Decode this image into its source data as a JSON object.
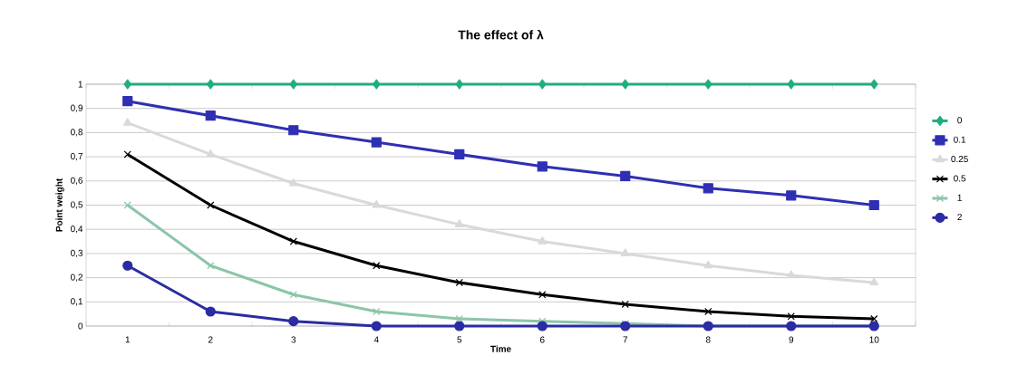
{
  "chart_data": {
    "type": "line",
    "title": "The effect of λ",
    "xlabel": "Time",
    "ylabel": "Point weight",
    "categories": [
      "1",
      "2",
      "3",
      "4",
      "5",
      "6",
      "7",
      "8",
      "9",
      "10"
    ],
    "ylim": [
      0,
      1
    ],
    "yticks": [
      0,
      {
        "value": 0.1,
        "label": "0,1"
      },
      {
        "value": 0.2,
        "label": "0,2"
      },
      {
        "value": 0.3,
        "label": "0,3"
      },
      {
        "value": 0.4,
        "label": "0,4"
      },
      {
        "value": 0.5,
        "label": "0,5"
      },
      {
        "value": 0.6,
        "label": "0,6"
      },
      {
        "value": 0.7,
        "label": "0,7"
      },
      {
        "value": 0.8,
        "label": "0,8"
      },
      {
        "value": 0.9,
        "label": "0,9"
      },
      1
    ],
    "grid": "y",
    "legend": "right",
    "series": [
      {
        "name": "0",
        "color": "#1fae80",
        "marker": "diamond",
        "values": [
          1,
          1,
          1,
          1,
          1,
          1,
          1,
          1,
          1,
          1
        ]
      },
      {
        "name": "0.1",
        "color": "#2f2fb4",
        "marker": "square",
        "values": [
          0.93,
          0.87,
          0.81,
          0.76,
          0.71,
          0.66,
          0.62,
          0.57,
          0.54,
          0.5
        ]
      },
      {
        "name": "0.25",
        "color": "#d9d9d9",
        "marker": "triangle",
        "values": [
          0.84,
          0.71,
          0.59,
          0.5,
          0.42,
          0.35,
          0.3,
          0.25,
          0.21,
          0.18
        ]
      },
      {
        "name": "0.5",
        "color": "#000000",
        "marker": "cross",
        "values": [
          0.71,
          0.5,
          0.35,
          0.25,
          0.18,
          0.13,
          0.09,
          0.06,
          0.04,
          0.03
        ]
      },
      {
        "name": "1",
        "color": "#8cc5a8",
        "marker": "cross",
        "values": [
          0.5,
          0.25,
          0.13,
          0.06,
          0.03,
          0.02,
          0.01,
          0.0,
          0.0,
          0.0
        ]
      },
      {
        "name": "2",
        "color": "#2b2ba3",
        "marker": "circle",
        "values": [
          0.25,
          0.06,
          0.02,
          0.0,
          0.0,
          0.0,
          0.0,
          0.0,
          0.0,
          0.0
        ]
      }
    ]
  }
}
